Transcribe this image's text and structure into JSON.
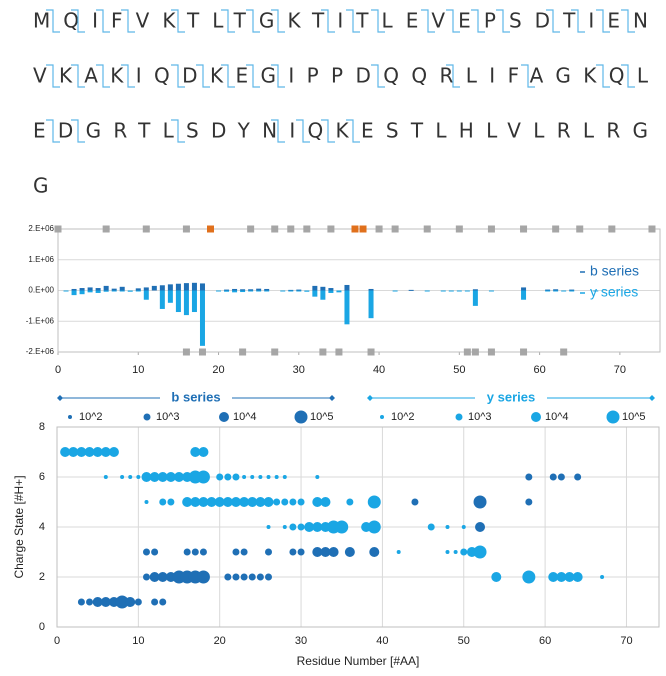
{
  "sequence_rows": [
    "MQIFVKTLTGKTITLEVEPSDTIEN",
    "VKAKIQDKEGIPPDQQRLIFAGKQL",
    "EDGRTLSDYNIQKESTLHLVLRLRG",
    "G"
  ],
  "chart_data": [
    {
      "type": "bar",
      "xlim": [
        0,
        75
      ],
      "xticks": [
        0,
        10,
        20,
        30,
        40,
        50,
        60,
        70
      ],
      "ylim": [
        -2000000,
        2000000
      ],
      "yticks": [
        {
          "value": -2000000,
          "label": "-2.E+06"
        },
        {
          "value": -1000000,
          "label": "-1.E+06"
        },
        {
          "value": 0,
          "label": "0.E+00"
        },
        {
          "value": 1000000,
          "label": "1.E+06"
        },
        {
          "value": 2000000,
          "label": "2.E+06"
        }
      ],
      "grid": true,
      "legend": "right",
      "series": [
        {
          "name": "b series",
          "color": "#1f6fb5",
          "x": [
            2,
            3,
            4,
            5,
            6,
            7,
            8,
            10,
            11,
            12,
            13,
            14,
            15,
            16,
            17,
            18,
            21,
            22,
            23,
            24,
            25,
            26,
            29,
            30,
            32,
            33,
            34,
            36,
            39,
            44,
            52,
            58,
            61,
            62,
            64
          ],
          "values": [
            50000,
            80000,
            100000,
            80000,
            150000,
            60000,
            120000,
            70000,
            100000,
            150000,
            170000,
            200000,
            220000,
            240000,
            250000,
            230000,
            30000,
            50000,
            40000,
            40000,
            60000,
            50000,
            20000,
            30000,
            150000,
            120000,
            80000,
            180000,
            50000,
            20000,
            40000,
            100000,
            30000,
            40000,
            30000
          ]
        },
        {
          "name": "y series",
          "color": "#1aa6e4",
          "x": [
            1,
            2,
            3,
            4,
            5,
            6,
            7,
            8,
            9,
            10,
            11,
            13,
            14,
            15,
            16,
            17,
            18,
            20,
            21,
            22,
            23,
            24,
            25,
            26,
            28,
            29,
            30,
            31,
            32,
            33,
            34,
            35,
            36,
            39,
            42,
            46,
            48,
            49,
            50,
            51,
            52,
            54,
            58,
            61,
            62,
            63,
            64,
            67
          ],
          "values": [
            -30000,
            -150000,
            -120000,
            -60000,
            -80000,
            -40000,
            -30000,
            -20000,
            -40000,
            -30000,
            -300000,
            -600000,
            -400000,
            -700000,
            -800000,
            -700000,
            -1800000,
            -30000,
            -40000,
            -60000,
            -50000,
            -30000,
            -20000,
            -30000,
            -20000,
            -20000,
            -30000,
            -40000,
            -200000,
            -300000,
            -80000,
            -60000,
            -1100000,
            -900000,
            -20000,
            -20000,
            -20000,
            -30000,
            -20000,
            -30000,
            -500000,
            -20000,
            -300000,
            -20000,
            -30000,
            -20000,
            -20000,
            -20000
          ]
        }
      ],
      "top_markers": [
        {
          "color": "#a6a6a6",
          "x": [
            0,
            6,
            11,
            16,
            24,
            27,
            29,
            31,
            34,
            40,
            42,
            46,
            50,
            54,
            58,
            62,
            65,
            69,
            74
          ]
        },
        {
          "color": "#e0701c",
          "x": [
            19,
            37,
            38
          ]
        }
      ],
      "bottom_markers": [
        {
          "color": "#a6a6a6",
          "x": [
            16,
            18,
            23,
            27,
            33,
            35,
            39,
            51,
            52,
            54,
            58,
            63
          ]
        }
      ]
    },
    {
      "type": "bubble",
      "xlabel": "Residue Number [#AA]",
      "ylabel": "Charge State  [#H+]",
      "xlim": [
        0,
        74
      ],
      "xticks": [
        0,
        10,
        20,
        30,
        40,
        50,
        60,
        70
      ],
      "ylim": [
        0,
        8
      ],
      "yticks": [
        0,
        2,
        4,
        6,
        8
      ],
      "grid": true,
      "size_legend": [
        {
          "value": 2,
          "label": "10^2"
        },
        {
          "value": 3,
          "label": "10^3"
        },
        {
          "value": 4,
          "label": "10^4"
        },
        {
          "value": 5,
          "label": "10^5"
        }
      ],
      "series": [
        {
          "name": "b series",
          "color": "#1f6fb5",
          "x": [
            3,
            4,
            5,
            6,
            7,
            8,
            9,
            10,
            12,
            13,
            11,
            12,
            13,
            14,
            15,
            16,
            17,
            18,
            21,
            22,
            23,
            24,
            25,
            26,
            11,
            12,
            16,
            17,
            18,
            22,
            23,
            26,
            29,
            30,
            32,
            33,
            34,
            36,
            39,
            52,
            44,
            52,
            58,
            58,
            61,
            62,
            64
          ],
          "y": [
            1,
            1,
            1,
            1,
            1,
            1,
            1,
            1,
            1,
            1,
            2,
            2,
            2,
            2,
            2,
            2,
            2,
            2,
            2,
            2,
            2,
            2,
            2,
            2,
            3,
            3,
            3,
            3,
            3,
            3,
            3,
            3,
            3,
            3,
            3,
            3,
            3,
            3,
            3,
            4,
            5,
            5,
            5,
            6,
            6,
            6,
            6
          ],
          "size": [
            3,
            3,
            4,
            4,
            4,
            5,
            4,
            3,
            3,
            3,
            3,
            4,
            4,
            4,
            5,
            5,
            5,
            5,
            3,
            3,
            3,
            3,
            3,
            3,
            3,
            3,
            3,
            3,
            3,
            3,
            3,
            3,
            3,
            3,
            4,
            4,
            4,
            4,
            4,
            4,
            3,
            5,
            3,
            3,
            3,
            3,
            3
          ]
        },
        {
          "name": "y series",
          "color": "#1aa6e4",
          "x": [
            1,
            2,
            3,
            4,
            5,
            6,
            7,
            17,
            18,
            6,
            8,
            9,
            10,
            11,
            12,
            13,
            14,
            15,
            16,
            17,
            18,
            20,
            21,
            22,
            23,
            24,
            25,
            26,
            27,
            28,
            32,
            11,
            13,
            14,
            16,
            17,
            18,
            19,
            20,
            21,
            22,
            23,
            24,
            25,
            26,
            27,
            28,
            29,
            30,
            32,
            33,
            36,
            39,
            26,
            28,
            29,
            30,
            31,
            32,
            33,
            34,
            35,
            38,
            39,
            46,
            48,
            50,
            42,
            48,
            49,
            50,
            51,
            52,
            54,
            58,
            61,
            62,
            63,
            64,
            67
          ],
          "y": [
            7,
            7,
            7,
            7,
            7,
            7,
            7,
            7,
            7,
            6,
            6,
            6,
            6,
            6,
            6,
            6,
            6,
            6,
            6,
            6,
            6,
            6,
            6,
            6,
            6,
            6,
            6,
            6,
            6,
            6,
            6,
            5,
            5,
            5,
            5,
            5,
            5,
            5,
            5,
            5,
            5,
            5,
            5,
            5,
            5,
            5,
            5,
            5,
            5,
            5,
            5,
            5,
            5,
            4,
            4,
            4,
            4,
            4,
            4,
            4,
            4,
            4,
            4,
            4,
            4,
            4,
            4,
            3,
            3,
            3,
            3,
            3,
            3,
            2,
            2,
            2,
            2,
            2,
            2,
            2
          ],
          "size": [
            4,
            4,
            4,
            4,
            4,
            4,
            4,
            4,
            4,
            2,
            2,
            2,
            2,
            4,
            4,
            4,
            4,
            4,
            4,
            5,
            5,
            3,
            3,
            3,
            2,
            2,
            2,
            2,
            2,
            2,
            2,
            2,
            3,
            3,
            4,
            4,
            4,
            4,
            4,
            4,
            4,
            4,
            4,
            4,
            4,
            3,
            3,
            3,
            3,
            4,
            4,
            3,
            5,
            2,
            2,
            3,
            3,
            4,
            4,
            4,
            5,
            5,
            4,
            5,
            3,
            2,
            2,
            2,
            2,
            2,
            3,
            4,
            5,
            4,
            5,
            4,
            4,
            4,
            4,
            2
          ]
        }
      ]
    }
  ]
}
